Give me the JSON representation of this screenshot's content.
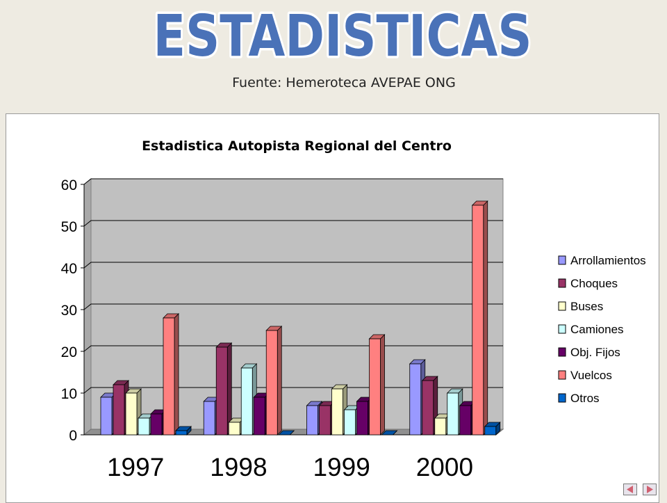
{
  "header": {
    "title": "ESTADISTICAS",
    "source": "Fuente: Hemeroteca  AVEPAE ONG"
  },
  "colors": {
    "title_fill": "#4a72b8",
    "title_outline": "#ffffff",
    "plot_bg": "#c0c0c0"
  },
  "nav": {
    "prev_icon": "triangle-left-icon",
    "next_icon": "triangle-right-icon"
  },
  "chart_data": {
    "type": "bar",
    "title": "Estadistica Autopista Regional del Centro",
    "xlabel": "",
    "ylabel": "",
    "categories": [
      "1997",
      "1998",
      "1999",
      "2000"
    ],
    "ylim": [
      0,
      60
    ],
    "yticks": [
      0,
      10,
      20,
      30,
      40,
      50,
      60
    ],
    "grid": true,
    "legend_position": "right",
    "three_d": true,
    "series": [
      {
        "name": "Arrollamientos",
        "color": "#9999ff",
        "values": [
          9,
          8,
          7,
          17
        ]
      },
      {
        "name": "Choques",
        "color": "#993366",
        "values": [
          12,
          21,
          7,
          13
        ]
      },
      {
        "name": "Buses",
        "color": "#ffffcc",
        "values": [
          10,
          3,
          11,
          4
        ]
      },
      {
        "name": "Camiones",
        "color": "#ccffff",
        "values": [
          4,
          16,
          6,
          10
        ]
      },
      {
        "name": "Obj. Fijos",
        "color": "#660066",
        "values": [
          5,
          9,
          8,
          7
        ]
      },
      {
        "name": "Vuelcos",
        "color": "#ff8080",
        "values": [
          28,
          25,
          23,
          55
        ]
      },
      {
        "name": "Otros",
        "color": "#0066cc",
        "values": [
          1,
          0,
          0,
          2
        ]
      }
    ]
  }
}
